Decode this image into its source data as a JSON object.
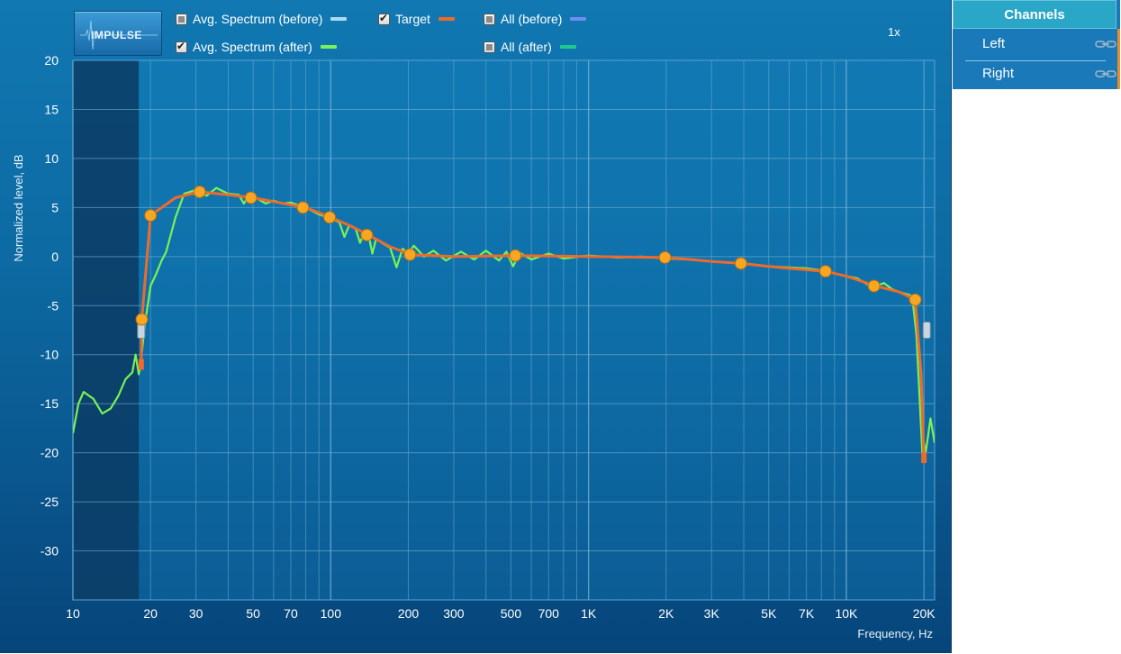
{
  "app": {
    "logo_label": "IMPULSE",
    "zoom_label": "1x"
  },
  "legend": [
    {
      "label": "Avg. Spectrum (before)",
      "checked": false,
      "color": "#a9dbf2"
    },
    {
      "label": "Target",
      "checked": true,
      "color": "#ee6a2c"
    },
    {
      "label": "All (before)",
      "checked": false,
      "color": "#6d8ff2"
    },
    {
      "label": "Avg. Spectrum (after)",
      "checked": true,
      "color": "#79f257"
    },
    {
      "label": "All (after)",
      "checked": false,
      "color": "#1fcb8c"
    }
  ],
  "channels": {
    "title": "Channels",
    "items": [
      {
        "label": "Left"
      },
      {
        "label": "Right"
      }
    ]
  },
  "colors": {
    "target": "#ee6a2c",
    "after": "#79f257",
    "handle": "#f5a623",
    "grid": "#7fb9dc"
  },
  "chart_data": {
    "type": "line",
    "xlabel": "Frequency, Hz",
    "ylabel": "Normalized level, dB",
    "x_scale": "log",
    "xlim": [
      10,
      22000
    ],
    "ylim": [
      -35,
      20
    ],
    "x_ticks": [
      {
        "v": 10,
        "label": "10"
      },
      {
        "v": 20,
        "label": "20"
      },
      {
        "v": 30,
        "label": "30"
      },
      {
        "v": 50,
        "label": "50"
      },
      {
        "v": 70,
        "label": "70"
      },
      {
        "v": 100,
        "label": "100"
      },
      {
        "v": 200,
        "label": "200"
      },
      {
        "v": 300,
        "label": "300"
      },
      {
        "v": 500,
        "label": "500"
      },
      {
        "v": 700,
        "label": "700"
      },
      {
        "v": 1000,
        "label": "1K"
      },
      {
        "v": 2000,
        "label": "2K"
      },
      {
        "v": 3000,
        "label": "3K"
      },
      {
        "v": 5000,
        "label": "5K"
      },
      {
        "v": 7000,
        "label": "7K"
      },
      {
        "v": 10000,
        "label": "10K"
      },
      {
        "v": 20000,
        "label": "20K"
      }
    ],
    "y_ticks": [
      20,
      15,
      10,
      5,
      0,
      -5,
      -10,
      -15,
      -20,
      -25,
      -30
    ],
    "excluded_below_hz": 18,
    "series": [
      {
        "name": "Target",
        "points": [
          [
            18.4,
            -11
          ],
          [
            18.5,
            -6.4
          ],
          [
            20,
            4.2
          ],
          [
            25,
            6
          ],
          [
            31,
            6.6
          ],
          [
            40,
            6.3
          ],
          [
            50,
            6
          ],
          [
            60,
            5.6
          ],
          [
            80,
            5
          ],
          [
            100,
            4
          ],
          [
            120,
            3.1
          ],
          [
            140,
            2.2
          ],
          [
            170,
            1
          ],
          [
            205,
            0.2
          ],
          [
            300,
            0
          ],
          [
            520,
            0.1
          ],
          [
            1000,
            0
          ],
          [
            1980,
            -0.1
          ],
          [
            2500,
            -0.3
          ],
          [
            3000,
            -0.5
          ],
          [
            3900,
            -0.7
          ],
          [
            5000,
            -1
          ],
          [
            6000,
            -1.2
          ],
          [
            8300,
            -1.5
          ],
          [
            10000,
            -2
          ],
          [
            13000,
            -3
          ],
          [
            16000,
            -3.6
          ],
          [
            18500,
            -4.4
          ],
          [
            19500,
            -12
          ],
          [
            20000,
            -20.5
          ]
        ]
      },
      {
        "name": "Avg. Spectrum (after)",
        "points": [
          [
            10,
            -18
          ],
          [
            10.5,
            -15
          ],
          [
            11,
            -13.8
          ],
          [
            12,
            -14.5
          ],
          [
            13,
            -16
          ],
          [
            14,
            -15.5
          ],
          [
            15,
            -14.2
          ],
          [
            16,
            -12.5
          ],
          [
            17,
            -11.8
          ],
          [
            17.5,
            -10
          ],
          [
            18,
            -12
          ],
          [
            18.3,
            -11
          ],
          [
            19,
            -7
          ],
          [
            20,
            -3
          ],
          [
            21,
            -1.8
          ],
          [
            22,
            -0.5
          ],
          [
            23,
            0.5
          ],
          [
            25,
            4
          ],
          [
            27,
            6.4
          ],
          [
            30,
            6.8
          ],
          [
            33,
            6.2
          ],
          [
            36,
            7
          ],
          [
            40,
            6.4
          ],
          [
            44,
            6.3
          ],
          [
            46,
            5.4
          ],
          [
            48,
            6.2
          ],
          [
            52,
            5.9
          ],
          [
            56,
            5.4
          ],
          [
            60,
            5.7
          ],
          [
            65,
            5.4
          ],
          [
            70,
            5.5
          ],
          [
            80,
            5
          ],
          [
            90,
            4.3
          ],
          [
            100,
            3.9
          ],
          [
            108,
            3.5
          ],
          [
            113,
            2
          ],
          [
            118,
            3.2
          ],
          [
            125,
            2.8
          ],
          [
            130,
            1.4
          ],
          [
            135,
            2.5
          ],
          [
            140,
            2.3
          ],
          [
            145,
            0.3
          ],
          [
            150,
            1.8
          ],
          [
            160,
            1.3
          ],
          [
            170,
            0.9
          ],
          [
            180,
            -1.1
          ],
          [
            190,
            0.8
          ],
          [
            200,
            0.3
          ],
          [
            210,
            1.1
          ],
          [
            230,
            0
          ],
          [
            250,
            0.6
          ],
          [
            280,
            -0.4
          ],
          [
            320,
            0.5
          ],
          [
            360,
            -0.3
          ],
          [
            400,
            0.6
          ],
          [
            450,
            -0.4
          ],
          [
            480,
            0.5
          ],
          [
            510,
            -1
          ],
          [
            540,
            0.4
          ],
          [
            600,
            -0.3
          ],
          [
            700,
            0.3
          ],
          [
            800,
            -0.2
          ],
          [
            1000,
            0.1
          ],
          [
            1300,
            -0.1
          ],
          [
            1600,
            0
          ],
          [
            2000,
            -0.2
          ],
          [
            2500,
            -0.3
          ],
          [
            3000,
            -0.5
          ],
          [
            4000,
            -0.7
          ],
          [
            5000,
            -1
          ],
          [
            6000,
            -1.1
          ],
          [
            7000,
            -1.2
          ],
          [
            8000,
            -1.4
          ],
          [
            9000,
            -1.7
          ],
          [
            10000,
            -2
          ],
          [
            11000,
            -2.2
          ],
          [
            12000,
            -2.8
          ],
          [
            13000,
            -3
          ],
          [
            14000,
            -2.7
          ],
          [
            15000,
            -3.3
          ],
          [
            16000,
            -3.6
          ],
          [
            17000,
            -3.8
          ],
          [
            18000,
            -4
          ],
          [
            18700,
            -8
          ],
          [
            19200,
            -14
          ],
          [
            19700,
            -20
          ],
          [
            20000,
            -19
          ],
          [
            20300,
            -20
          ],
          [
            20700,
            -18.5
          ],
          [
            21200,
            -16.5
          ],
          [
            22000,
            -19
          ]
        ]
      }
    ],
    "control_points": [
      [
        18.5,
        -6.4
      ],
      [
        20,
        4.2
      ],
      [
        31,
        6.6
      ],
      [
        49,
        6
      ],
      [
        78,
        5
      ],
      [
        99,
        4
      ],
      [
        138,
        2.2
      ],
      [
        203,
        0.2
      ],
      [
        520,
        0.1
      ],
      [
        1980,
        -0.1
      ],
      [
        3900,
        -0.7
      ],
      [
        8300,
        -1.5
      ],
      [
        12800,
        -3
      ],
      [
        18500,
        -4.4
      ]
    ]
  }
}
